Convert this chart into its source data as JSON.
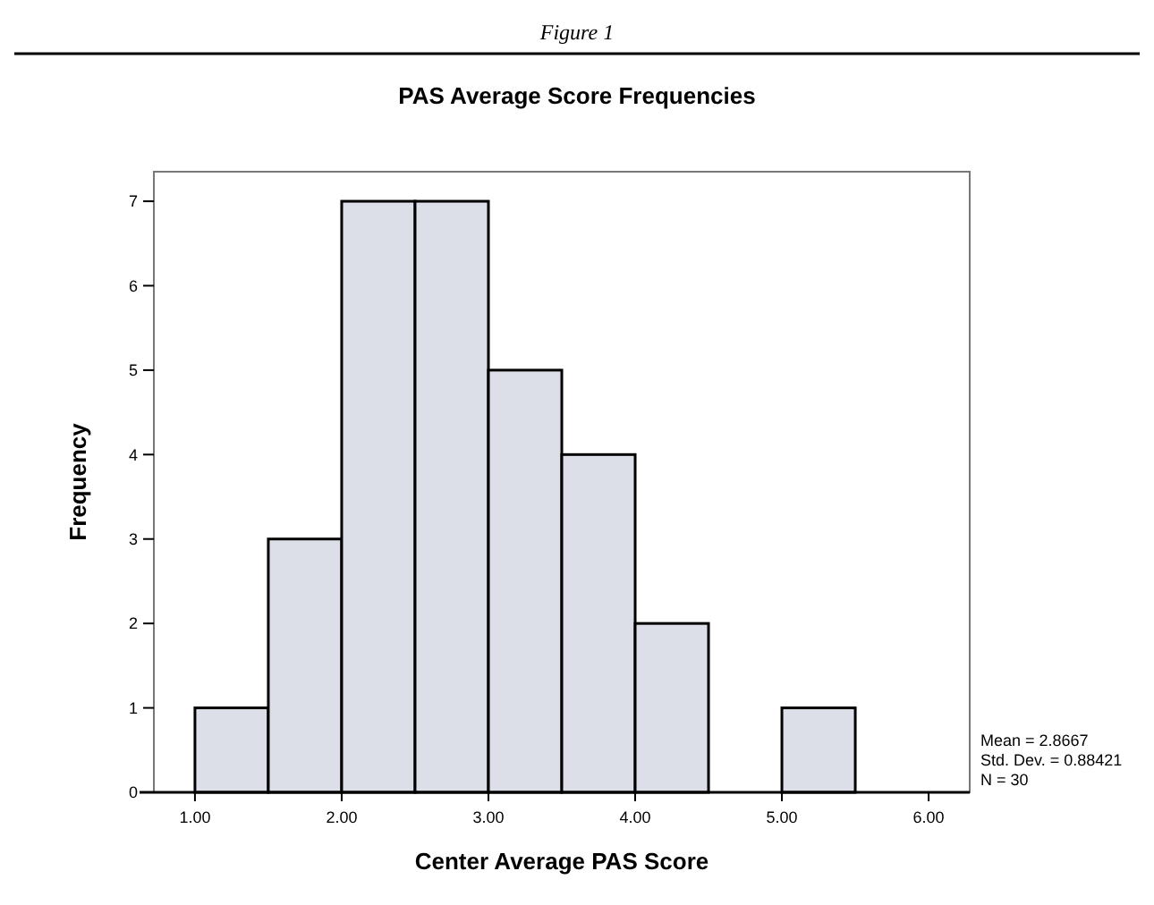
{
  "chart_data": {
    "type": "histogram",
    "title": "PAS Average Score Frequencies",
    "xlabel": "Center Average PAS Score",
    "ylabel": "Frequency",
    "bins": [
      1,
      1.5,
      2,
      2.5,
      3,
      3.5,
      4,
      4.5,
      5,
      5.5
    ],
    "values": [
      1,
      3,
      7,
      7,
      5,
      4,
      2,
      0,
      1
    ],
    "color": "#dcdfe8",
    "xlim": [
      0.72,
      6.28
    ],
    "xticks": [
      {
        "value": 1,
        "label": "1.00"
      },
      {
        "value": 2,
        "label": "2.00"
      },
      {
        "value": 3,
        "label": "3.00"
      },
      {
        "value": 4,
        "label": "4.00"
      },
      {
        "value": 5,
        "label": "5.00"
      },
      {
        "value": 6,
        "label": "6.00"
      }
    ],
    "ylim": [
      0,
      7.35
    ],
    "yticks": [
      0,
      1,
      2,
      3,
      4,
      5,
      6,
      7
    ],
    "annotations": [
      "Figure 1",
      "Mean = 2.8667",
      "Std. Dev. = 0.88421",
      "N = 30"
    ]
  }
}
